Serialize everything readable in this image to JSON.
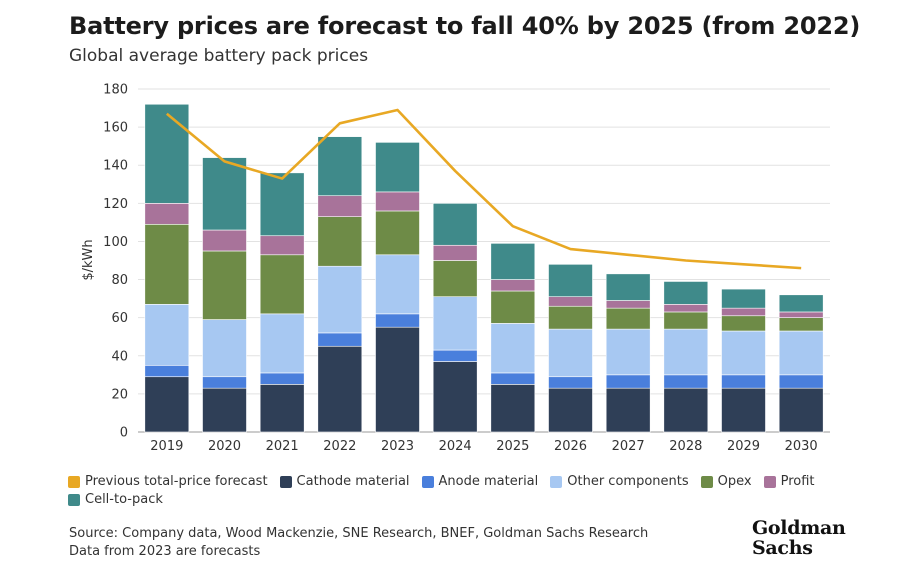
{
  "header": {
    "title": "Battery prices are forecast to fall 40% by 2025 (from 2022)",
    "subtitle": "Global average battery pack prices"
  },
  "chart_data": {
    "type": "bar",
    "stacked": true,
    "categories": [
      "2019",
      "2020",
      "2021",
      "2022",
      "2023",
      "2024",
      "2025",
      "2026",
      "2027",
      "2028",
      "2029",
      "2030"
    ],
    "ylabel": "$/kWh",
    "ylim": [
      0,
      180
    ],
    "yticks": [
      0,
      20,
      40,
      60,
      80,
      100,
      120,
      140,
      160,
      180
    ],
    "grid": true,
    "legend_position": "bottom",
    "series": [
      {
        "name": "Cathode material",
        "color": "#2f3f57",
        "values": [
          29,
          23,
          25,
          45,
          55,
          37,
          25,
          23,
          23,
          23,
          23,
          23
        ]
      },
      {
        "name": "Anode material",
        "color": "#4a7fdc",
        "values": [
          6,
          6,
          6,
          7,
          7,
          6,
          6,
          6,
          7,
          7,
          7,
          7
        ]
      },
      {
        "name": "Other components",
        "color": "#a7c8f2",
        "values": [
          32,
          30,
          31,
          35,
          31,
          28,
          26,
          25,
          24,
          24,
          23,
          23
        ]
      },
      {
        "name": "Opex",
        "color": "#6e8b47",
        "values": [
          42,
          36,
          31,
          26,
          23,
          19,
          17,
          12,
          11,
          9,
          8,
          7
        ]
      },
      {
        "name": "Profit",
        "color": "#a8739a",
        "values": [
          11,
          11,
          10,
          11,
          10,
          8,
          6,
          5,
          4,
          4,
          4,
          3
        ]
      },
      {
        "name": "Cell-to-pack",
        "color": "#3f8a8a",
        "values": [
          52,
          38,
          33,
          31,
          26,
          22,
          19,
          17,
          14,
          12,
          10,
          9
        ]
      }
    ],
    "line_series": {
      "name": "Previous total-price forecast",
      "color": "#e8a824",
      "values": [
        167,
        142,
        133,
        162,
        169,
        137,
        108,
        96,
        93,
        90,
        88,
        86
      ]
    }
  },
  "legend": [
    {
      "label": "Previous total-price forecast",
      "color": "#e8a824"
    },
    {
      "label": "Cathode material",
      "color": "#2f3f57"
    },
    {
      "label": "Anode material",
      "color": "#4a7fdc"
    },
    {
      "label": "Other components",
      "color": "#a7c8f2"
    },
    {
      "label": "Opex",
      "color": "#6e8b47"
    },
    {
      "label": "Profit",
      "color": "#a8739a"
    },
    {
      "label": "Cell-to-pack",
      "color": "#3f8a8a"
    }
  ],
  "footer": {
    "source": "Source: Company data, Wood Mackenzie, SNE Research, BNEF, Goldman Sachs Research",
    "note": "Data from 2023 are forecasts"
  },
  "logo": {
    "line1": "Goldman",
    "line2": "Sachs"
  }
}
